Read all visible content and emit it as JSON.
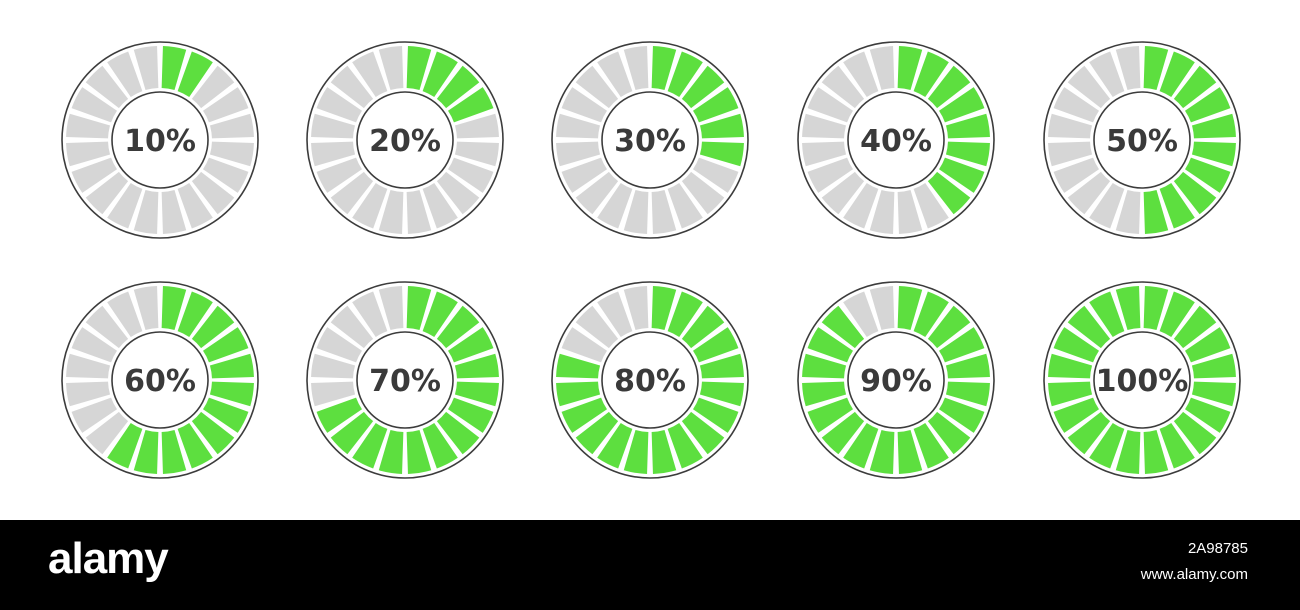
{
  "indicators": [
    {
      "label": "10%",
      "value": 0.1
    },
    {
      "label": "20%",
      "value": 0.2
    },
    {
      "label": "30%",
      "value": 0.3
    },
    {
      "label": "40%",
      "value": 0.4
    },
    {
      "label": "50%",
      "value": 0.5
    },
    {
      "label": "60%",
      "value": 0.6
    },
    {
      "label": "70%",
      "value": 0.7
    },
    {
      "label": "80%",
      "value": 0.8
    },
    {
      "label": "90%",
      "value": 0.9
    },
    {
      "label": "100%",
      "value": 1.0
    }
  ],
  "segments_per_ring": 20,
  "colors": {
    "filled": "#5ddf3f",
    "empty": "#d6d6d6",
    "outline": "#3c3c3c",
    "label": "#3a3a3a"
  },
  "footer": {
    "brand": "alamy",
    "image_id": "2A98785",
    "site": "www.alamy.com"
  }
}
